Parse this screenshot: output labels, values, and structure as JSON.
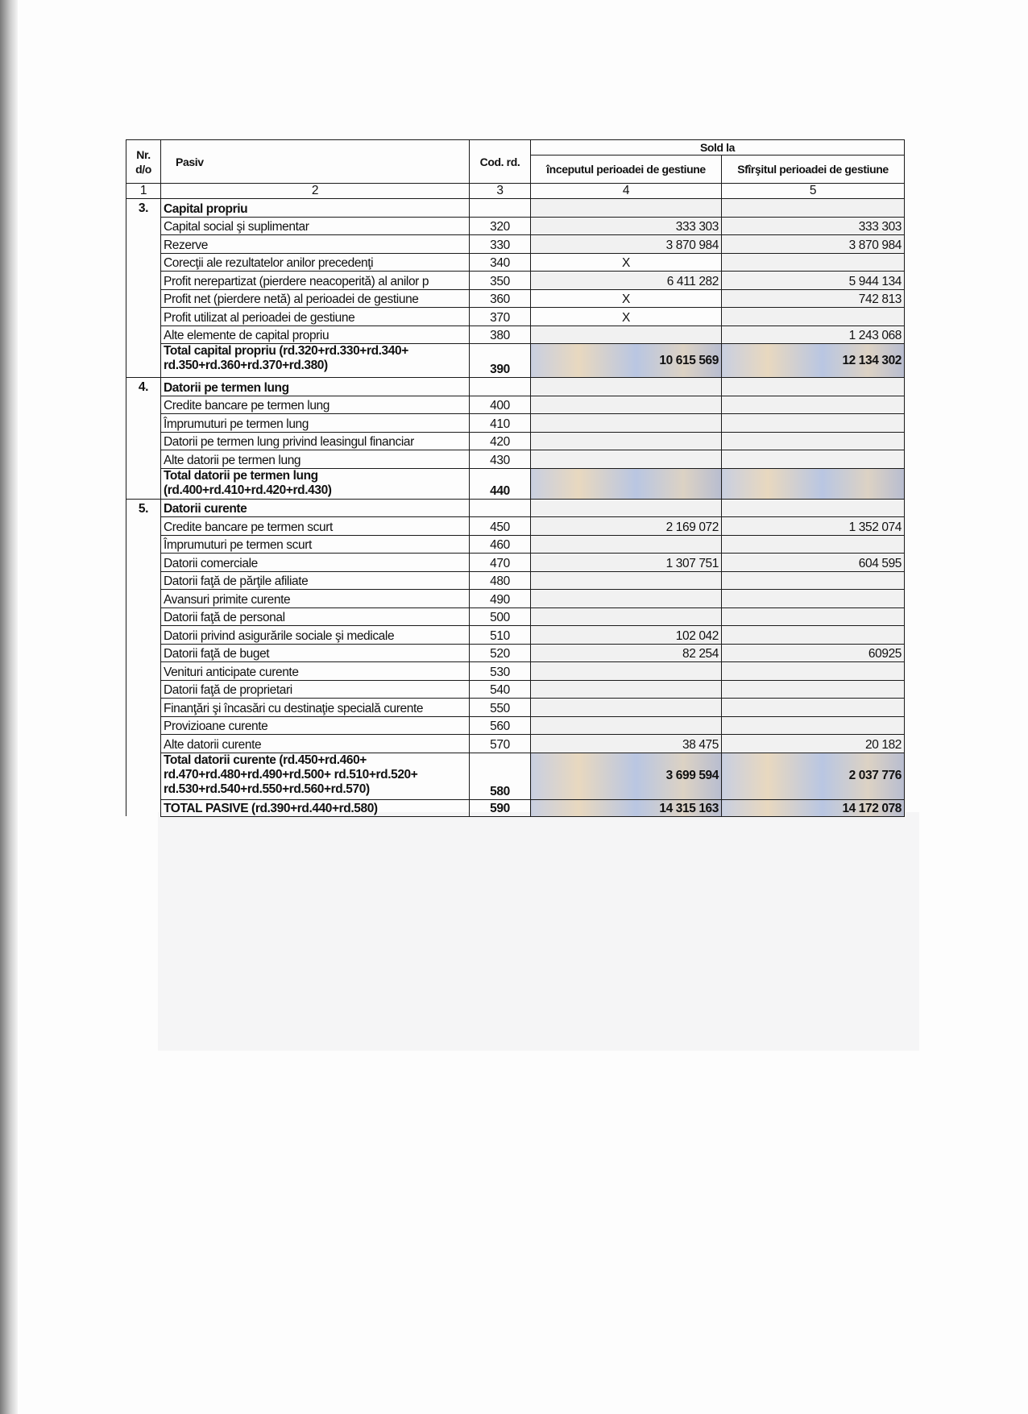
{
  "header": {
    "nr": "Nr. d/o",
    "pasiv": "Pasiv",
    "cod": "Cod. rd.",
    "sold_la": "Sold la",
    "col4": "începutul perioadei de gestiune",
    "col5": "Sfîrşitul perioadei de gestiune",
    "numbers": [
      "1",
      "2",
      "3",
      "4",
      "5"
    ]
  },
  "sections": [
    {
      "nr": "3.",
      "rows": [
        {
          "label": "Capital propriu",
          "code": "",
          "v4": "",
          "v5": "",
          "bold": true,
          "heading": true
        },
        {
          "label": "Capital social şi suplimentar",
          "code": "320",
          "v4": "333 303",
          "v5": "333 303"
        },
        {
          "label": "Rezerve",
          "code": "330",
          "v4": "3 870 984",
          "v5": "3 870 984"
        },
        {
          "label": "Corecţii ale rezultatelor anilor precedenţi",
          "code": "340",
          "v4": "X",
          "v5": ""
        },
        {
          "label": "Profit nerepartizat (pierdere neacoperită) al anilor p",
          "code": "350",
          "v4": "6 411 282",
          "v5": "5 944 134"
        },
        {
          "label": "Profit net (pierdere netă) al perioadei de gestiune",
          "code": "360",
          "v4": "X",
          "v5": "742 813"
        },
        {
          "label": "Profit utilizat al perioadei de gestiune",
          "code": "370",
          "v4": "X",
          "v5": ""
        },
        {
          "label": "Alte elemente de capital propriu",
          "code": "380",
          "v4": "",
          "v5": "1 243 068"
        },
        {
          "label": "Total capital propriu (rd.320+rd.330+rd.340+ rd.350+rd.360+rd.370+rd.380)",
          "code": "390",
          "v4": "10 615 569",
          "v5": "12 134 302",
          "bold": true,
          "total": true,
          "h": 42
        }
      ]
    },
    {
      "nr": "4.",
      "rows": [
        {
          "label": "Datorii pe termen lung",
          "code": "",
          "v4": "",
          "v5": "",
          "bold": true,
          "heading": true
        },
        {
          "label": "Credite bancare pe termen lung",
          "code": "400",
          "v4": "",
          "v5": ""
        },
        {
          "label": "Împrumuturi pe termen lung",
          "code": "410",
          "v4": "",
          "v5": ""
        },
        {
          "label": "Datorii pe termen lung privind leasingul financiar",
          "code": "420",
          "v4": "",
          "v5": ""
        },
        {
          "label": "Alte datorii pe termen lung",
          "code": "430",
          "v4": "",
          "v5": ""
        },
        {
          "label": "Total datorii pe termen lung (rd.400+rd.410+rd.420+rd.430)",
          "code": "440",
          "v4": "",
          "v5": "",
          "bold": true,
          "total": true,
          "h": 38
        }
      ]
    },
    {
      "nr": "5.",
      "rows": [
        {
          "label": "Datorii curente",
          "code": "",
          "v4": "",
          "v5": "",
          "bold": true,
          "heading": true
        },
        {
          "label": "Credite bancare pe termen scurt",
          "code": "450",
          "v4": "2 169 072",
          "v5": "1 352 074"
        },
        {
          "label": "Împrumuturi pe termen scurt",
          "code": "460",
          "v4": "",
          "v5": ""
        },
        {
          "label": "Datorii comerciale",
          "code": "470",
          "v4": "1 307 751",
          "v5": "604 595"
        },
        {
          "label": "Datorii faţă de părţile afiliate",
          "code": "480",
          "v4": "",
          "v5": ""
        },
        {
          "label": "Avansuri primite curente",
          "code": "490",
          "v4": "",
          "v5": ""
        },
        {
          "label": "Datorii faţă de personal",
          "code": "500",
          "v4": "",
          "v5": ""
        },
        {
          "label": "Datorii privind asigurările sociale şi medicale",
          "code": "510",
          "v4": "102 042",
          "v5": ""
        },
        {
          "label": "Datorii faţă de buget",
          "code": "520",
          "v4": "82 254",
          "v5": "60925"
        },
        {
          "label": "Venituri anticipate curente",
          "code": "530",
          "v4": "",
          "v5": ""
        },
        {
          "label": "Datorii faţă de proprietari",
          "code": "540",
          "v4": "",
          "v5": ""
        },
        {
          "label": "Finanţări şi încasări cu destinaţie specială curente",
          "code": "550",
          "v4": "",
          "v5": ""
        },
        {
          "label": "Provizioane curente",
          "code": "560",
          "v4": "",
          "v5": ""
        },
        {
          "label": "Alte datorii curente",
          "code": "570",
          "v4": "38 475",
          "v5": "20 182"
        },
        {
          "label": "Total datorii curente (rd.450+rd.460+ rd.470+rd.480+rd.490+rd.500+ rd.510+rd.520+ rd.530+rd.540+rd.550+rd.560+rd.570)",
          "code": "580",
          "v4": "3 699 594",
          "v5": "2 037 776",
          "bold": true,
          "total": true,
          "h": 58
        },
        {
          "label": "TOTAL PASIVE  (rd.390+rd.440+rd.580)",
          "code": "590",
          "v4": "14 315 163",
          "v5": "14 172 078",
          "bold": true,
          "total": true,
          "h": 21
        }
      ]
    }
  ]
}
